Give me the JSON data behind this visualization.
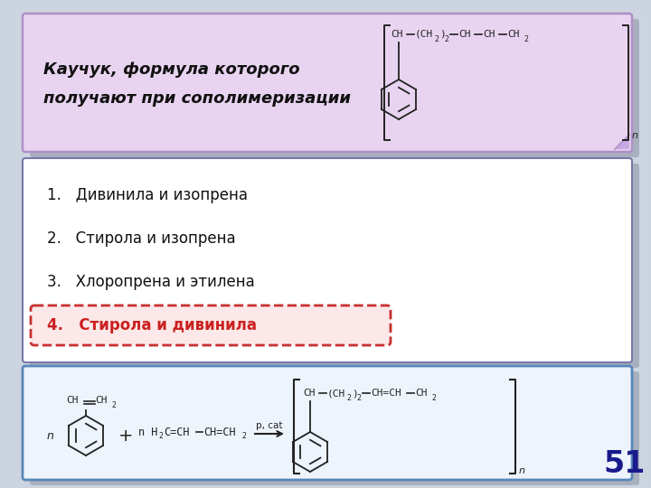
{
  "bg_color": "#ccd4e0",
  "title_box_color": "#e8d4f0",
  "title_box_border": "#b090c8",
  "title_shadow_color": "#a8b0c0",
  "title_text_line1": "Каучук, формула которого",
  "title_text_line2": "получают при сополимеризации",
  "title_fontsize": 13,
  "answers_box_color": "#ffffff",
  "answers_box_border": "#7878a8",
  "answers_shadow_color": "#a8b0c0",
  "answers": [
    "1.   Дивинила и изопрена",
    "2.   Стирола и изопрена",
    "3.   Хлоропрена и этилена",
    "4.   Стирола и дивинила"
  ],
  "correct_answer_idx": 3,
  "correct_box_color": "#fce8e8",
  "correct_box_border": "#c83030",
  "answer_fontsize": 12,
  "formula_box_color": "#eef4fc",
  "formula_box_border": "#5888b8",
  "formula_shadow_color": "#a8b0c0",
  "slide_number": "51",
  "slide_number_color": "#1a1a8c",
  "slide_number_fontsize": 24
}
